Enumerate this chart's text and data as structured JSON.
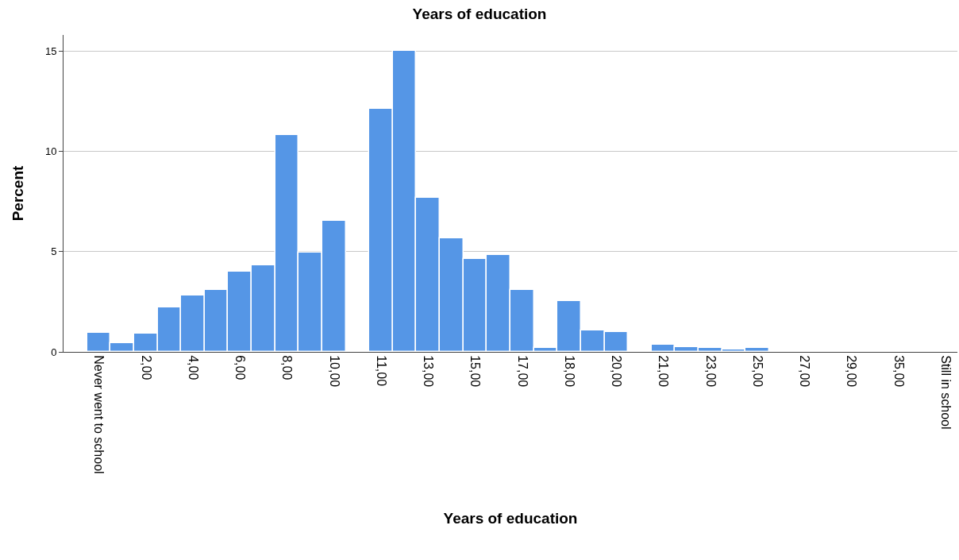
{
  "chart_data": {
    "type": "bar",
    "title": "Years of education",
    "xlabel": "Years of education",
    "ylabel": "Percent",
    "categories": [
      "Never went to school",
      null,
      "2,00",
      null,
      "4,00",
      null,
      "6,00",
      null,
      "8,00",
      null,
      "10,00",
      null,
      "11,00",
      null,
      "13,00",
      null,
      "15,00",
      null,
      "17,00",
      null,
      "18,00",
      null,
      "20,00",
      null,
      "21,00",
      null,
      "23,00",
      null,
      "25,00",
      null,
      "27,00",
      null,
      "29,00",
      null,
      "35,00",
      null,
      "Still in school"
    ],
    "values": [
      0.95,
      0.45,
      0.9,
      2.2,
      2.8,
      3.1,
      4.0,
      4.3,
      10.8,
      4.95,
      6.55,
      null,
      12.1,
      15.0,
      7.7,
      5.65,
      4.65,
      4.85,
      3.1,
      0.2,
      2.55,
      1.05,
      1.0,
      null,
      0.35,
      0.25,
      0.2,
      0.1,
      0.2,
      null,
      null,
      null,
      null,
      null,
      null,
      null,
      null
    ],
    "color": "#5596e6",
    "ylim": [
      0,
      15.8
    ],
    "yticks": [
      0,
      5,
      10,
      15
    ],
    "grid": "y"
  }
}
